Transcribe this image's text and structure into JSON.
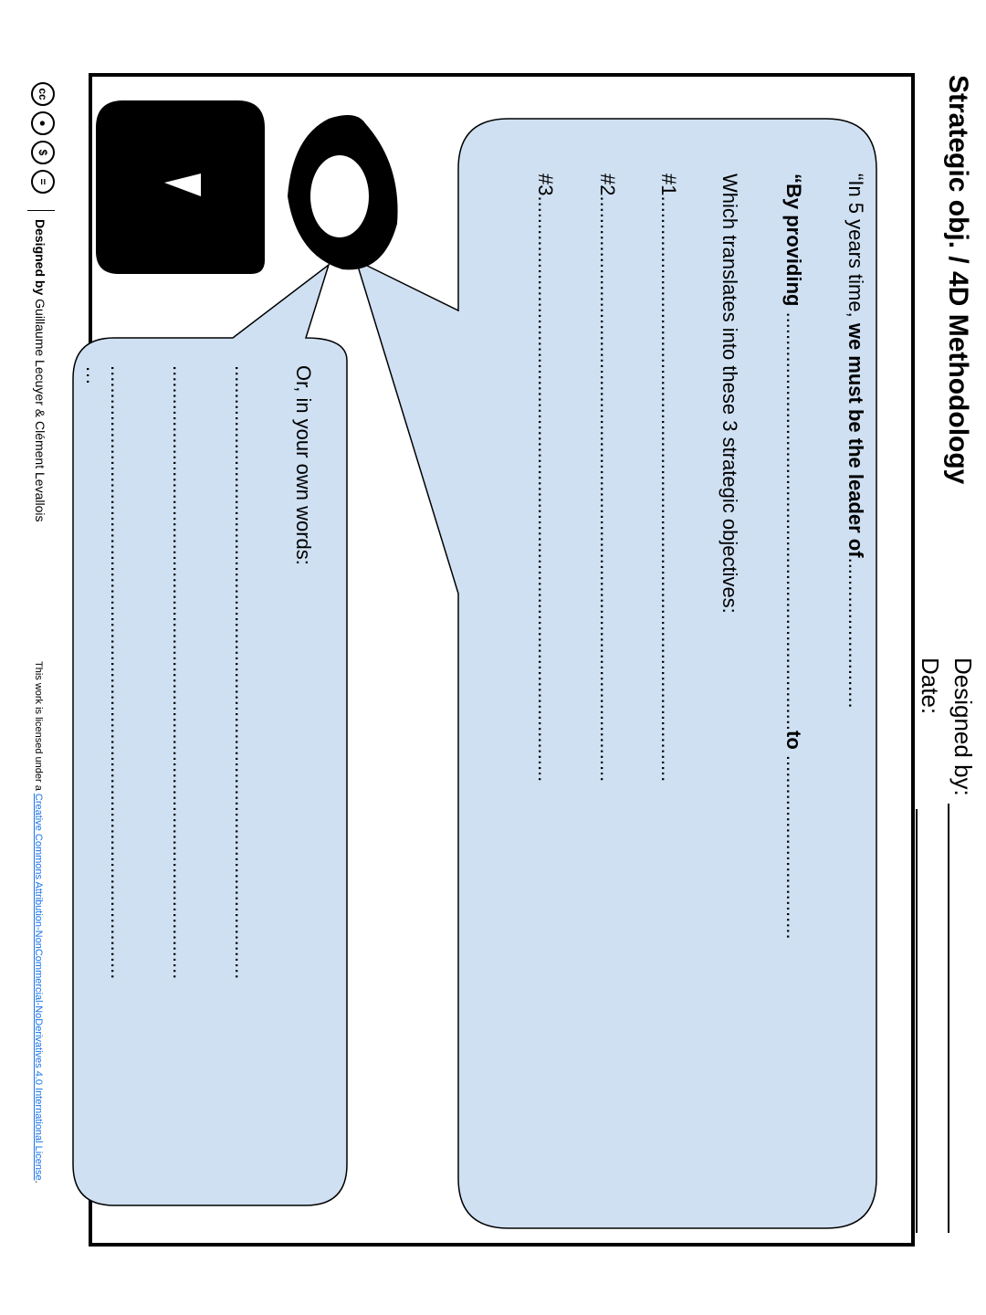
{
  "header": {
    "title": "Strategic obj. / 4D Methodology",
    "designed_by_label": "Designed by:",
    "date_label": "Date:"
  },
  "main_bubble": {
    "line1_prefix": "“In 5 years time, ",
    "line1_bold": "we must be the leader of",
    "line2_bold_start": "“By providing",
    "line2_bold_mid": "to",
    "objectives_intro": "Which translates into these 3 strategic objectives:",
    "objectives": [
      "#1",
      "#2",
      "#3"
    ]
  },
  "secondary_bubble": {
    "prompt": "Or, in your own words:",
    "ellipsis": "…"
  },
  "footer": {
    "cc_icons": [
      "cc",
      "by",
      "nc",
      "nd"
    ],
    "designed_by_label": "Designed by",
    "designers": "Guillaume Lecuyer & Clément Levallois",
    "license_prefix": "This work is licensed under a ",
    "license_link": "Creative Commons Attribution-NonCommercial-NoDerivatives 4.0 International License",
    "license_suffix": "."
  },
  "colors": {
    "bubble_fill": "#cfe0f2",
    "license_link": "#1a73e8"
  }
}
